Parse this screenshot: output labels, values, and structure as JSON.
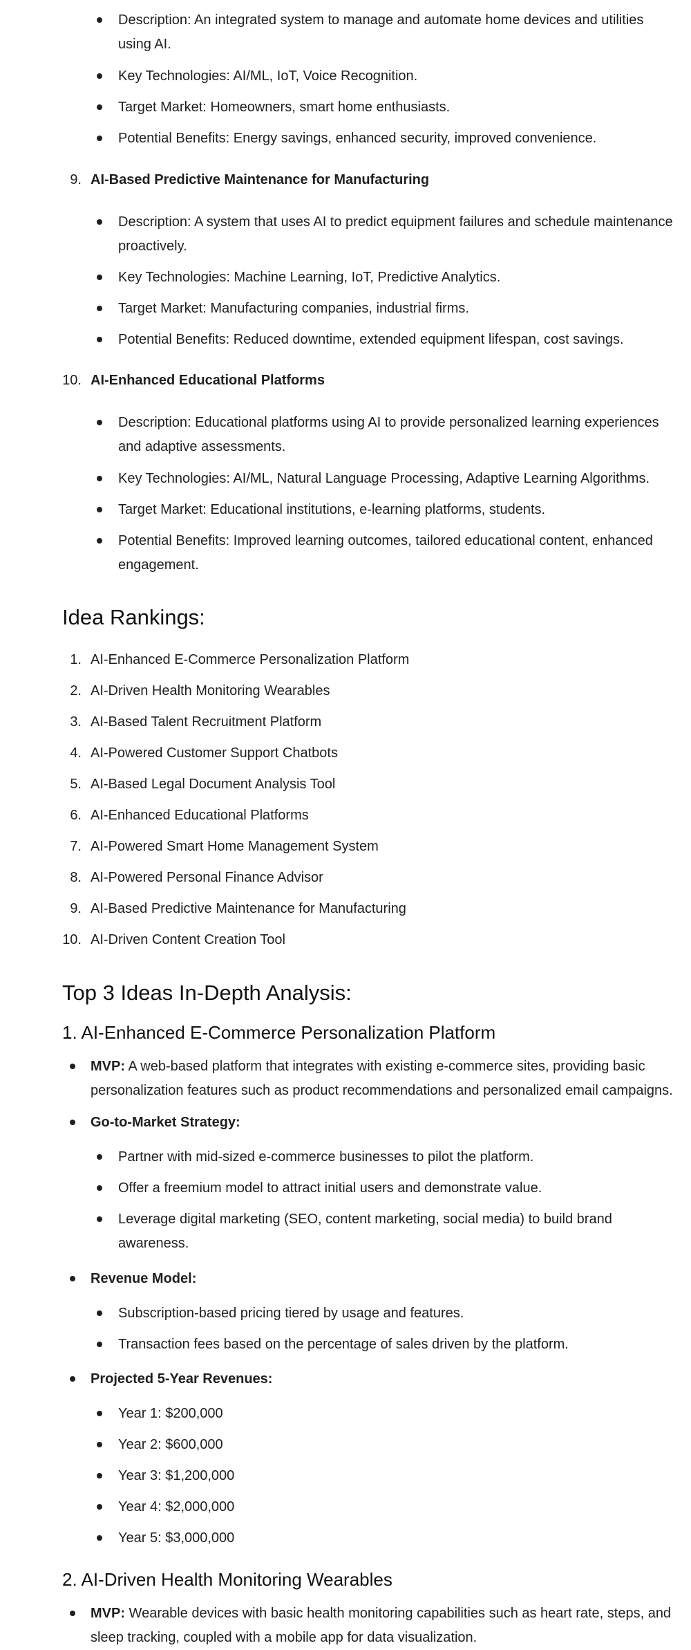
{
  "idea8": {
    "description_1": "Description: An integrated system to manage and automate home devices and utilities",
    "description_2": "using AI.",
    "tech": "Key Technologies: AI/ML, IoT, Voice Recognition.",
    "market": "Target Market: Homeowners, smart home enthusiasts.",
    "benefits": "Potential Benefits: Energy savings, enhanced security, improved convenience."
  },
  "idea9": {
    "number": "9.",
    "title": "AI-Based Predictive Maintenance for Manufacturing",
    "description_1": "Description: A system that uses AI to predict equipment failures and schedule maintenance",
    "description_2": "proactively.",
    "tech": "Key Technologies: Machine Learning, IoT, Predictive Analytics.",
    "market": "Target Market: Manufacturing companies, industrial firms.",
    "benefits": "Potential Benefits: Reduced downtime, extended equipment lifespan, cost savings."
  },
  "idea10": {
    "number": "10.",
    "title": "AI-Enhanced Educational Platforms",
    "description_1": "Description: Educational platforms using AI to provide personalized learning experiences",
    "description_2": "and adaptive assessments.",
    "tech": "Key Technologies: AI/ML, Natural Language Processing, Adaptive Learning Algorithms.",
    "market": "Target Market: Educational institutions, e-learning platforms, students.",
    "benefits_1": "Potential Benefits: Improved learning outcomes, tailored educational content, enhanced",
    "benefits_2": "engagement."
  },
  "rankings": {
    "heading": "Idea Rankings:",
    "items": [
      {
        "num": "1.",
        "text": "AI-Enhanced E-Commerce Personalization Platform"
      },
      {
        "num": "2.",
        "text": "AI-Driven Health Monitoring Wearables"
      },
      {
        "num": "3.",
        "text": "AI-Based Talent Recruitment Platform"
      },
      {
        "num": "4.",
        "text": "AI-Powered Customer Support Chatbots"
      },
      {
        "num": "5.",
        "text": "AI-Based Legal Document Analysis Tool"
      },
      {
        "num": "6.",
        "text": "AI-Enhanced Educational Platforms"
      },
      {
        "num": "7.",
        "text": "AI-Powered Smart Home Management System"
      },
      {
        "num": "8.",
        "text": "AI-Powered Personal Finance Advisor"
      },
      {
        "num": "9.",
        "text": "AI-Based Predictive Maintenance for Manufacturing"
      },
      {
        "num": "10.",
        "text": "AI-Driven Content Creation Tool"
      }
    ]
  },
  "analysis": {
    "heading": "Top 3 Ideas In-Depth Analysis:",
    "idea1": {
      "title": "1. AI-Enhanced E-Commerce Personalization Platform",
      "mvp_label": "MVP:",
      "mvp_1": " A web-based platform that integrates with existing e-commerce sites, providing basic",
      "mvp_2": "personalization features such as product recommendations and personalized email campaigns.",
      "gtm_label": "Go-to-Market Strategy:",
      "gtm_1": "Partner with mid-sized e-commerce businesses to pilot the platform.",
      "gtm_2": "Offer a freemium model to attract initial users and demonstrate value.",
      "gtm_3a": "Leverage digital marketing (SEO, content marketing, social media) to build brand",
      "gtm_3b": "awareness.",
      "revenue_label": "Revenue Model:",
      "rev_1": "Subscription-based pricing tiered by usage and features.",
      "rev_2": "Transaction fees based on the percentage of sales driven by the platform.",
      "proj_label": "Projected 5-Year Revenues:",
      "years": [
        "Year 1: $200,000",
        "Year 2: $600,000",
        "Year 3: $1,200,000",
        "Year 4: $2,000,000",
        "Year 5: $3,000,000"
      ]
    },
    "idea2": {
      "title": "2. AI-Driven Health Monitoring Wearables",
      "mvp_label": "MVP:",
      "mvp_1": " Wearable devices with basic health monitoring capabilities such as heart rate, steps, and",
      "mvp_2": "sleep tracking, coupled with a mobile app for data visualization."
    }
  }
}
